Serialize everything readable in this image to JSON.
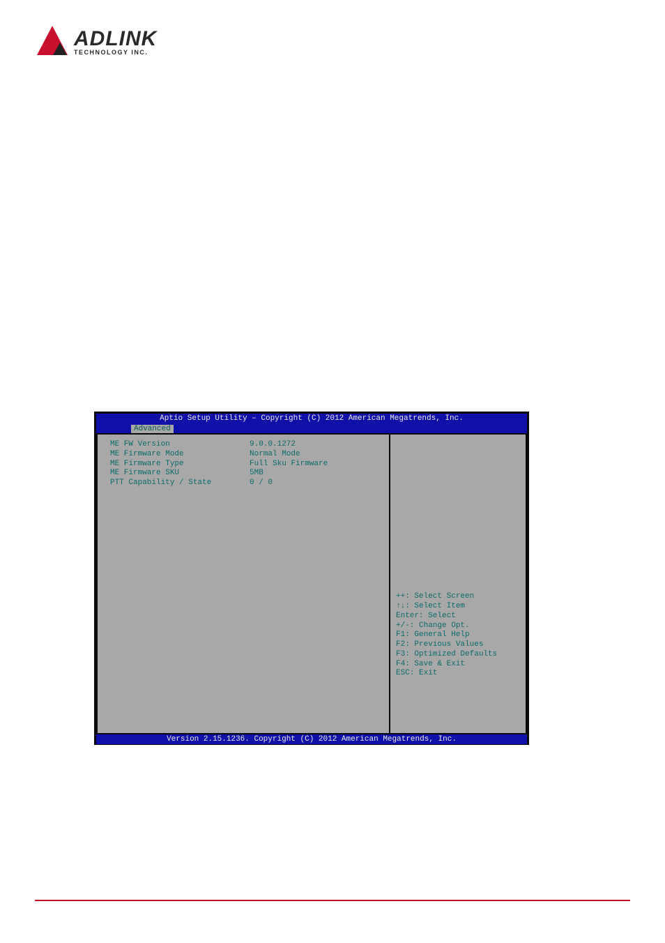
{
  "logo": {
    "main": "ADLINK",
    "sub": "TECHNOLOGY INC."
  },
  "bios": {
    "title": "Aptio Setup Utility – Copyright (C) 2012 American Megatrends, Inc.",
    "tab": "Advanced",
    "rows": [
      {
        "label": "ME FW Version",
        "value": "9.0.0.1272"
      },
      {
        "label": "ME Firmware Mode",
        "value": "Normal Mode"
      },
      {
        "label": "ME Firmware Type",
        "value": "Full Sku Firmware"
      },
      {
        "label": "ME Firmware SKU",
        "value": "5MB"
      },
      {
        "label": "PTT Capability / State",
        "value": "0 / 0"
      }
    ],
    "help": [
      "++: Select Screen",
      "↑↓: Select Item",
      "Enter: Select",
      "+/-: Change Opt.",
      "F1: General Help",
      "F2: Previous Values",
      "F3: Optimized Defaults",
      "F4: Save & Exit",
      "ESC: Exit"
    ],
    "footer": "Version 2.15.1236. Copyright (C) 2012 American Megatrends, Inc."
  },
  "colors": {
    "bios_blue": "#1010a8",
    "bios_gray": "#a8a8a8",
    "bios_teal": "#0c6a6a",
    "rule_red": "#c8102e"
  }
}
